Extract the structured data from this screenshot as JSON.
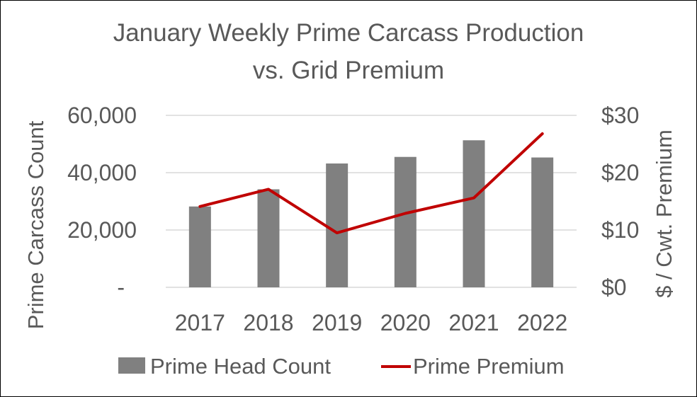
{
  "chart_data": {
    "type": "bar+line",
    "title": [
      "January Weekly Prime Carcass Production",
      "vs. Grid Premium"
    ],
    "categories": [
      "2017",
      "2018",
      "2019",
      "2020",
      "2021",
      "2022"
    ],
    "series": [
      {
        "name": "Prime Head Count",
        "type": "bar",
        "axis": "left",
        "values": [
          28200,
          34200,
          43200,
          45500,
          51300,
          45300
        ],
        "color": "#808080"
      },
      {
        "name": "Prime Premium",
        "type": "line",
        "axis": "right",
        "values": [
          14.1,
          17.1,
          9.5,
          12.9,
          15.6,
          26.8
        ],
        "color": "#C00000"
      }
    ],
    "y_left": {
      "label": "Prime Carcass Count",
      "range": [
        0,
        60000
      ],
      "ticks": [
        0,
        20000,
        40000,
        60000
      ],
      "tick_labels": [
        "-",
        "20,000",
        "40,000",
        "60,000"
      ]
    },
    "y_right": {
      "label": "$ / Cwt. Premium",
      "range": [
        0,
        30
      ],
      "ticks": [
        0,
        10,
        20,
        30
      ],
      "tick_labels": [
        "$0",
        "$10",
        "$20",
        "$30"
      ]
    },
    "grid": true,
    "legend": {
      "position": "bottom",
      "items": [
        "Prime Head Count",
        "Prime Premium"
      ]
    },
    "colors": {
      "text": "#595959",
      "grid": "#d9d9d9"
    }
  }
}
